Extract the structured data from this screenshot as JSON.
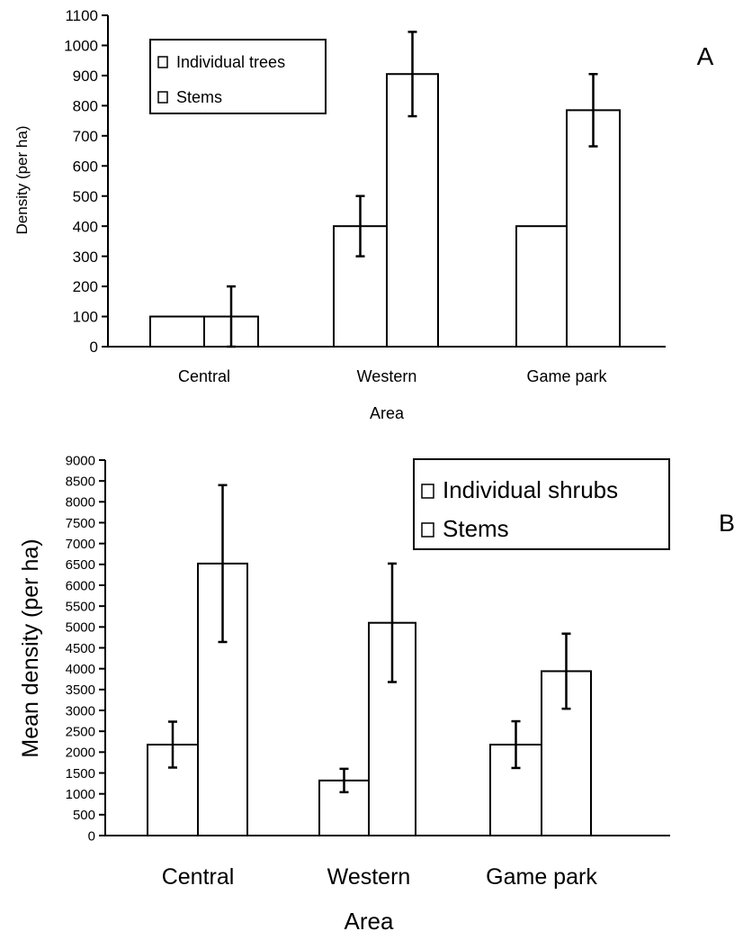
{
  "chart_data": [
    {
      "type": "bar",
      "panel_label": "A",
      "xlabel": "Area",
      "ylabel": "Density (per ha)",
      "ylim": [
        0,
        1100
      ],
      "yticks": [
        0,
        100,
        200,
        300,
        400,
        500,
        600,
        700,
        800,
        900,
        1000,
        1100
      ],
      "categories": [
        "Central",
        "Western",
        "Game park"
      ],
      "series": [
        {
          "name": "Individual trees",
          "values": [
            100,
            400,
            400
          ],
          "errors": [
            0,
            100,
            0
          ]
        },
        {
          "name": "Stems",
          "values": [
            100,
            905,
            785
          ],
          "errors": [
            100,
            140,
            120
          ]
        }
      ],
      "legend": "top-left",
      "grid": false
    },
    {
      "type": "bar",
      "panel_label": "B",
      "xlabel": "Area",
      "ylabel": "Mean density (per ha)",
      "ylim": [
        0,
        9000
      ],
      "yticks": [
        0,
        500,
        1000,
        1500,
        2000,
        2500,
        3000,
        3500,
        4000,
        4500,
        5000,
        5500,
        6000,
        6500,
        7000,
        7500,
        8000,
        8500,
        9000
      ],
      "categories": [
        "Central",
        "Western",
        "Game park"
      ],
      "series": [
        {
          "name": "Individual shrubs",
          "values": [
            2180,
            1320,
            2180
          ],
          "errors": [
            550,
            280,
            560
          ]
        },
        {
          "name": "Stems",
          "values": [
            6520,
            5100,
            3940
          ],
          "errors": [
            1880,
            1420,
            900
          ]
        }
      ],
      "legend": "top-right",
      "grid": false
    }
  ]
}
